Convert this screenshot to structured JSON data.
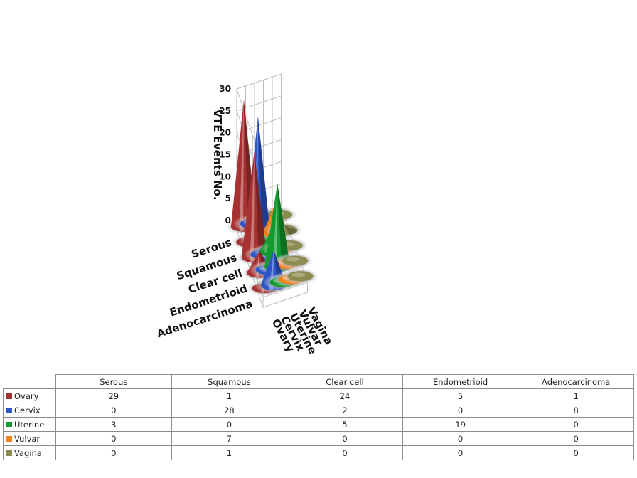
{
  "chart_data": {
    "type": "bar",
    "subtype": "3d-cone",
    "ylabel": "VTE Events No.",
    "ylim": [
      0,
      30
    ],
    "yticks": [
      0,
      5,
      10,
      15,
      20,
      25,
      30
    ],
    "grid": true,
    "categories": [
      "Serous",
      "Squamous",
      "Clear cell",
      "Endometrioid",
      "Adenocarcinoma"
    ],
    "series": [
      {
        "name": "Ovary",
        "color": "#a83232",
        "values": [
          29,
          1,
          24,
          5,
          1
        ]
      },
      {
        "name": "Cervix",
        "color": "#2c55c8",
        "values": [
          0,
          28,
          2,
          0,
          8
        ]
      },
      {
        "name": "Uterine",
        "color": "#129a2e",
        "values": [
          3,
          0,
          5,
          19,
          0
        ]
      },
      {
        "name": "Vulvar",
        "color": "#f0821e",
        "values": [
          0,
          7,
          0,
          0,
          0
        ]
      },
      {
        "name": "Vagina",
        "color": "#8c8c50",
        "values": [
          0,
          1,
          0,
          0,
          0
        ]
      }
    ]
  }
}
